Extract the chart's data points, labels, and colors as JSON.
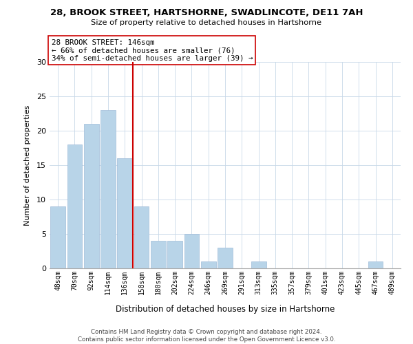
{
  "title": "28, BROOK STREET, HARTSHORNE, SWADLINCOTE, DE11 7AH",
  "subtitle": "Size of property relative to detached houses in Hartshorne",
  "xlabel": "Distribution of detached houses by size in Hartshorne",
  "ylabel": "Number of detached properties",
  "bar_labels": [
    "48sqm",
    "70sqm",
    "92sqm",
    "114sqm",
    "136sqm",
    "158sqm",
    "180sqm",
    "202sqm",
    "224sqm",
    "246sqm",
    "269sqm",
    "291sqm",
    "313sqm",
    "335sqm",
    "357sqm",
    "379sqm",
    "401sqm",
    "423sqm",
    "445sqm",
    "467sqm",
    "489sqm"
  ],
  "bar_values": [
    9,
    18,
    21,
    23,
    16,
    9,
    4,
    4,
    5,
    1,
    3,
    0,
    1,
    0,
    0,
    0,
    0,
    0,
    0,
    1,
    0
  ],
  "bar_color": "#b8d4e8",
  "bar_edge_color": "#a0bcd8",
  "vline_index": 4.5,
  "vline_color": "#cc0000",
  "ylim": [
    0,
    30
  ],
  "yticks": [
    0,
    5,
    10,
    15,
    20,
    25,
    30
  ],
  "annotation_title": "28 BROOK STREET: 146sqm",
  "annotation_line1": "← 66% of detached houses are smaller (76)",
  "annotation_line2": "34% of semi-detached houses are larger (39) →",
  "annotation_box_facecolor": "#ffffff",
  "annotation_box_edgecolor": "#cc0000",
  "footer_line1": "Contains HM Land Registry data © Crown copyright and database right 2024.",
  "footer_line2": "Contains public sector information licensed under the Open Government Licence v3.0.",
  "background_color": "#ffffff",
  "grid_color": "#c8d8e8"
}
